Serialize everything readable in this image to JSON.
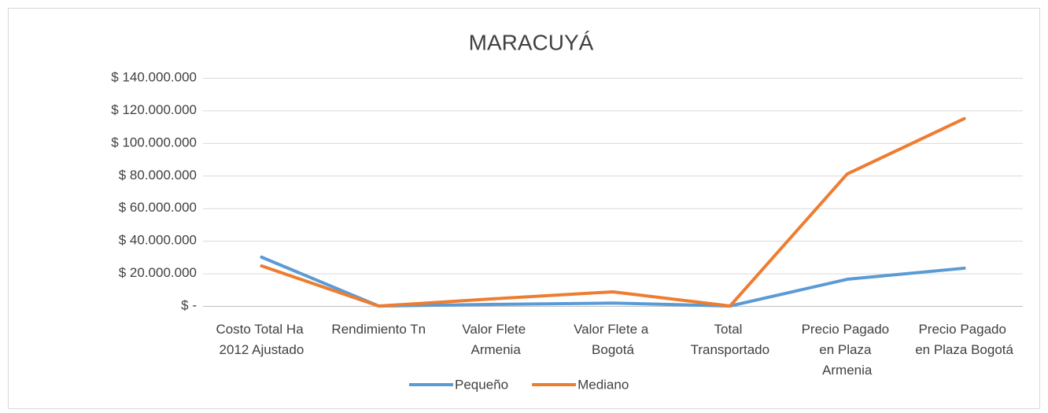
{
  "chart_data": {
    "type": "line",
    "title": "MARACUYÁ",
    "categories": [
      "Costo Total Ha 2012 Ajustado",
      "Rendimiento Tn",
      "Valor Flete Armenia",
      "Valor Flete a Bogotá",
      "Total Transportado",
      "Precio Pagado en Plaza Armenia",
      "Precio Pagado en Plaza Bogotá"
    ],
    "series": [
      {
        "name": "Pequeño",
        "color": "#5b9bd5",
        "values": [
          30000000,
          0,
          1000000,
          1800000,
          0,
          16400000,
          23200000
        ]
      },
      {
        "name": "Mediano",
        "color": "#ed7d31",
        "values": [
          24600000,
          0,
          4500000,
          8700000,
          0,
          81000000,
          115000000
        ]
      }
    ],
    "ylim": [
      0,
      140000000
    ],
    "yticks": [
      {
        "value": 0,
        "label": "$ -"
      },
      {
        "value": 20000000,
        "label": "$ 20.000.000"
      },
      {
        "value": 40000000,
        "label": "$ 40.000.000"
      },
      {
        "value": 60000000,
        "label": "$ 60.000.000"
      },
      {
        "value": 80000000,
        "label": "$ 80.000.000"
      },
      {
        "value": 100000000,
        "label": "$ 100.000.000"
      },
      {
        "value": 120000000,
        "label": "$ 120.000.000"
      },
      {
        "value": 140000000,
        "label": "$ 140.000.000"
      }
    ],
    "grid": true,
    "legend": "bottom"
  }
}
